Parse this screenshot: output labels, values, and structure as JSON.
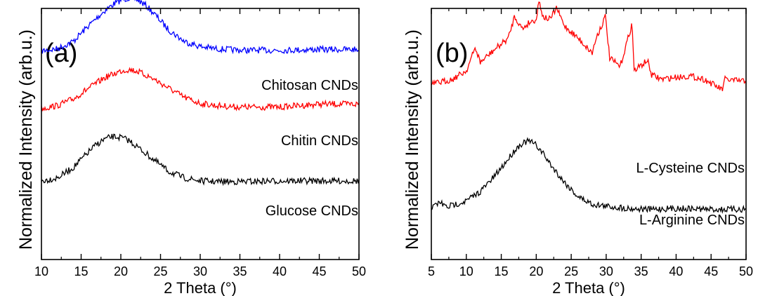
{
  "chart_data": [
    {
      "type": "line",
      "panel_label": "(a)",
      "xlabel": "2 Theta (°)",
      "ylabel": "Normalized Intensity (arb.u.)",
      "xlim": [
        10,
        50
      ],
      "xticks": [
        10,
        15,
        20,
        25,
        30,
        35,
        40,
        45,
        50
      ],
      "y_tick_labels": false,
      "series": [
        {
          "name": "Chitosan CNDs",
          "color": "#0000ff",
          "x": [
            10,
            12,
            14,
            16,
            18,
            19,
            20,
            21,
            22,
            23,
            24,
            25,
            26,
            28,
            30,
            32,
            35,
            40,
            45,
            50
          ],
          "y": [
            0.07,
            0.1,
            0.2,
            0.42,
            0.62,
            0.7,
            0.76,
            0.79,
            0.77,
            0.7,
            0.6,
            0.48,
            0.36,
            0.2,
            0.13,
            0.1,
            0.08,
            0.08,
            0.09,
            0.09
          ]
        },
        {
          "name": "Chitin CNDs",
          "color": "#ff0000",
          "x": [
            10,
            12,
            14,
            16,
            18,
            20,
            21,
            22,
            24,
            26,
            28,
            30,
            32,
            35,
            40,
            45,
            50
          ],
          "y": [
            0.05,
            0.09,
            0.18,
            0.33,
            0.47,
            0.56,
            0.58,
            0.56,
            0.46,
            0.33,
            0.2,
            0.12,
            0.09,
            0.07,
            0.07,
            0.11,
            0.11
          ]
        },
        {
          "name": "Glucose CNDs",
          "color": "#000000",
          "x": [
            10,
            12,
            14,
            16,
            17,
            18,
            19,
            20,
            21,
            22,
            24,
            26,
            28,
            30,
            32,
            35,
            40,
            45,
            50
          ],
          "y": [
            0.02,
            0.06,
            0.2,
            0.42,
            0.52,
            0.59,
            0.62,
            0.61,
            0.57,
            0.49,
            0.32,
            0.15,
            0.06,
            0.02,
            0.01,
            0.01,
            0.02,
            0.02,
            0.02
          ]
        }
      ]
    },
    {
      "type": "line",
      "panel_label": "(b)",
      "xlabel": "2 Theta (°)",
      "ylabel": "Normalized Intensity (arb.u.)",
      "xlim": [
        5,
        50
      ],
      "xticks": [
        5,
        10,
        15,
        20,
        25,
        30,
        35,
        40,
        45,
        50
      ],
      "y_tick_labels": false,
      "series": [
        {
          "name": "L-Cysteine CNDs",
          "color": "#ff0000",
          "x": [
            5,
            8,
            10,
            11.3,
            12,
            14,
            16,
            16.9,
            18,
            19,
            20,
            20.4,
            21,
            22,
            22.9,
            24,
            26,
            28,
            28.6,
            29.4,
            29.9,
            30.5,
            32,
            33.7,
            34,
            35.9,
            36.5,
            38,
            40,
            42,
            44,
            46.6,
            47,
            48,
            50
          ],
          "y": [
            0.13,
            0.18,
            0.26,
            0.48,
            0.34,
            0.46,
            0.57,
            0.78,
            0.66,
            0.72,
            0.75,
            0.93,
            0.77,
            0.75,
            0.86,
            0.69,
            0.57,
            0.43,
            0.58,
            0.7,
            0.78,
            0.38,
            0.3,
            0.71,
            0.26,
            0.36,
            0.22,
            0.18,
            0.2,
            0.21,
            0.18,
            0.08,
            0.18,
            0.17,
            0.16
          ]
        },
        {
          "name": "L-Arginine CNDs",
          "color": "#000000",
          "x": [
            5,
            6.2,
            7.2,
            8,
            10,
            12,
            14,
            16,
            17,
            18,
            19,
            20,
            21,
            22,
            24,
            26,
            28,
            30,
            33,
            36,
            40,
            45,
            50
          ],
          "y": [
            0.02,
            0.08,
            0.03,
            0.05,
            0.09,
            0.18,
            0.32,
            0.49,
            0.58,
            0.64,
            0.66,
            0.62,
            0.54,
            0.44,
            0.27,
            0.13,
            0.06,
            0.04,
            0.02,
            0.01,
            0.02,
            0.01,
            0.01
          ]
        }
      ]
    }
  ]
}
